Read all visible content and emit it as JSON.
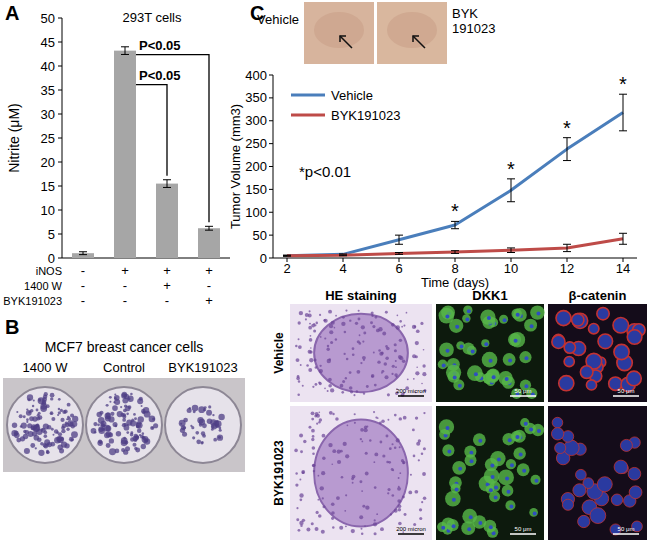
{
  "chart_data": [
    {
      "type": "bar",
      "panel_label": "A",
      "title": "293T cells",
      "y_label": "Nitrite (μM)",
      "categories": [
        null,
        null,
        null,
        null
      ],
      "values": [
        1,
        43.2,
        15.5,
        6.2
      ],
      "errors": [
        0.3,
        0.8,
        0.8,
        0.4
      ],
      "color": "#a6a6a6",
      "ylim": [
        0,
        50
      ],
      "yticks": [
        0,
        5,
        10,
        15,
        20,
        25,
        30,
        35,
        40,
        45,
        50
      ],
      "conditions": [
        {
          "label": "iNOS",
          "marks": [
            "-",
            "+",
            "+",
            "+"
          ]
        },
        {
          "label": "1400 W",
          "marks": [
            "-",
            "-",
            "+",
            "-"
          ]
        },
        {
          "label": "BYK191023",
          "marks": [
            "-",
            "-",
            "-",
            "+"
          ]
        }
      ],
      "comparisons": [
        {
          "from": 1,
          "to": 2,
          "text": "P<0.05"
        },
        {
          "from": 1,
          "to": 3,
          "text": "P<0.05"
        }
      ]
    },
    {
      "type": "line",
      "panel_label": "C",
      "x_label": "Time (days)",
      "y_label": "Tumor Volume (mm3)",
      "x": [
        2,
        4,
        6,
        8,
        10,
        12,
        14
      ],
      "xlim": [
        1.5,
        14.5
      ],
      "xticks": [
        2,
        4,
        6,
        8,
        10,
        12,
        14
      ],
      "ylim": [
        0,
        400
      ],
      "yticks": [
        0,
        50,
        100,
        150,
        200,
        250,
        300,
        350,
        400
      ],
      "series": [
        {
          "name": "Vehicle",
          "color": "#4a7ebb",
          "values": [
            5,
            8,
            40,
            72,
            148,
            238,
            318
          ],
          "errors": [
            1,
            1,
            10,
            8,
            25,
            25,
            40
          ]
        },
        {
          "name": "BYK191023",
          "color": "#be4b48",
          "values": [
            5,
            6,
            10,
            13,
            17,
            22,
            42
          ],
          "errors": [
            1,
            1,
            2,
            3,
            5,
            8,
            12
          ]
        }
      ],
      "legend": "upper-left",
      "significance": {
        "symbol": "*",
        "x": [
          8,
          10,
          12,
          14
        ]
      },
      "annotation": "*p<0.01"
    }
  ],
  "panel_b": {
    "label": "B",
    "title": "MCF7 breast cancer cells",
    "plates": [
      "1400 W",
      "Control",
      "BYK191023"
    ]
  },
  "panel_c_photos": {
    "labels": [
      [
        "Vehicle"
      ],
      [
        "BYK",
        "191023"
      ]
    ]
  },
  "panel_c_histology": {
    "columns": [
      "HE staining",
      "DKK1",
      "β-catenin"
    ],
    "rows": [
      "Vehicle",
      "BYK191023"
    ],
    "scale_bars": [
      "200 micron",
      "50 μm",
      "50 μm"
    ]
  }
}
